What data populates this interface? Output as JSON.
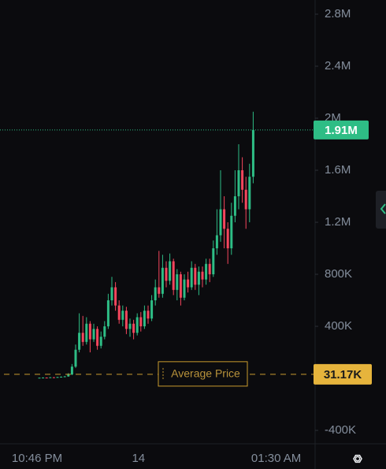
{
  "chart_data": {
    "type": "candlestick",
    "categories": [
      "10:46 PM",
      null,
      null,
      null,
      null,
      null,
      null,
      null,
      null,
      null,
      null,
      null,
      null,
      null,
      null,
      null,
      null,
      null,
      null,
      null,
      null,
      null,
      null,
      null,
      null,
      null,
      null,
      null,
      "14",
      null,
      null,
      null,
      null,
      null,
      null,
      null,
      null,
      null,
      null,
      null,
      null,
      null,
      null,
      null,
      null,
      null,
      null,
      null,
      null,
      null,
      null,
      null,
      null,
      null,
      null,
      null,
      null,
      null,
      null,
      null,
      null,
      null,
      null,
      null,
      null,
      null,
      "01:30 AM",
      null
    ],
    "open": [
      4000,
      5000,
      6000,
      5000,
      8000,
      7000,
      10000,
      12000,
      15000,
      30000,
      90000,
      220000,
      350000,
      280000,
      420000,
      300000,
      380000,
      250000,
      320000,
      400000,
      600000,
      700000,
      560000,
      450000,
      520000,
      380000,
      420000,
      350000,
      470000,
      400000,
      520000,
      460000,
      600000,
      700000,
      650000,
      850000,
      750000,
      900000,
      680000,
      800000,
      620000,
      760000,
      700000,
      850000,
      720000,
      820000,
      760000,
      880000,
      800000,
      1000000,
      1100000,
      1300000,
      1150000,
      1000000,
      1250000,
      1400000,
      1600000,
      1450000,
      1300000,
      1550000,
      null,
      null,
      null,
      null,
      null,
      null,
      null,
      null
    ],
    "high": [
      6000,
      8000,
      7000,
      10000,
      10000,
      12000,
      15000,
      18000,
      40000,
      110000,
      260000,
      500000,
      480000,
      470000,
      440000,
      420000,
      400000,
      360000,
      440000,
      650000,
      780000,
      740000,
      600000,
      560000,
      550000,
      460000,
      450000,
      500000,
      510000,
      560000,
      560000,
      640000,
      760000,
      980000,
      950000,
      900000,
      960000,
      920000,
      840000,
      820000,
      800000,
      820000,
      900000,
      880000,
      860000,
      860000,
      920000,
      920000,
      1060000,
      1300000,
      1600000,
      1400000,
      1200000,
      1350000,
      1600000,
      1800000,
      1700000,
      1550000,
      1650000,
      2050000,
      null,
      null,
      null,
      null,
      null,
      null,
      null,
      null
    ],
    "low": [
      3000,
      4000,
      4000,
      4000,
      5000,
      6000,
      9000,
      10000,
      12000,
      25000,
      80000,
      200000,
      250000,
      260000,
      200000,
      280000,
      220000,
      230000,
      300000,
      380000,
      560000,
      520000,
      420000,
      400000,
      340000,
      320000,
      300000,
      330000,
      360000,
      380000,
      420000,
      440000,
      560000,
      620000,
      620000,
      700000,
      720000,
      640000,
      600000,
      560000,
      600000,
      660000,
      680000,
      680000,
      640000,
      700000,
      720000,
      740000,
      780000,
      950000,
      1050000,
      1000000,
      880000,
      950000,
      1200000,
      1300000,
      1350000,
      1150000,
      1200000,
      1500000,
      null,
      null,
      null,
      null,
      null,
      null,
      null,
      null
    ],
    "close": [
      5000,
      6000,
      5000,
      8000,
      7000,
      10000,
      12000,
      15000,
      30000,
      90000,
      220000,
      350000,
      280000,
      420000,
      300000,
      380000,
      250000,
      320000,
      400000,
      600000,
      700000,
      560000,
      450000,
      520000,
      380000,
      420000,
      350000,
      470000,
      400000,
      520000,
      460000,
      600000,
      700000,
      650000,
      850000,
      750000,
      900000,
      680000,
      800000,
      620000,
      760000,
      700000,
      850000,
      720000,
      820000,
      760000,
      880000,
      800000,
      1000000,
      1100000,
      1300000,
      1150000,
      1000000,
      1250000,
      1400000,
      1600000,
      1450000,
      1300000,
      1550000,
      1910000,
      null,
      null,
      null,
      null,
      null,
      null,
      null,
      null
    ],
    "up_color": "#2ebd85",
    "down_color": "#f6465d",
    "ylim": [
      -503000,
      2909000
    ],
    "yticks": [
      {
        "value": 2800000,
        "label": "2.8M"
      },
      {
        "value": 2400000,
        "label": "2.4M"
      },
      {
        "value": 2000000,
        "label": "2M"
      },
      {
        "value": 1600000,
        "label": "1.6M"
      },
      {
        "value": 1200000,
        "label": "1.2M"
      },
      {
        "value": 800000,
        "label": "800K"
      },
      {
        "value": 400000,
        "label": "400K"
      },
      {
        "value": -400000,
        "label": "-400K"
      }
    ],
    "current_price": {
      "value": 1910000,
      "label": "1.91M"
    },
    "average_price": {
      "value": 31170,
      "label": "31.17K",
      "name": "Average Price"
    }
  }
}
